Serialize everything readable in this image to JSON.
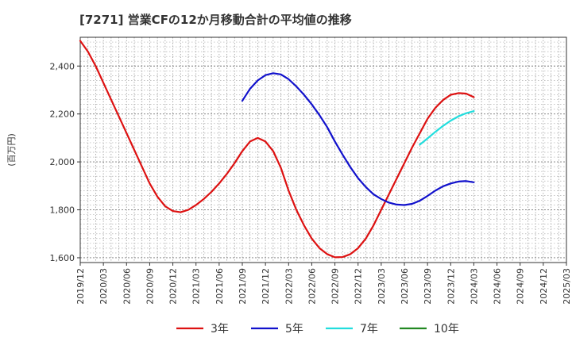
{
  "chart_data": {
    "type": "line",
    "title": "[7271]  営業CFの12か月移動合計の平均値の推移",
    "ylabel": "(百万円)",
    "xlabel": "",
    "ylim": [
      1580,
      2520
    ],
    "yticks": [
      1600,
      1800,
      2000,
      2200,
      2400
    ],
    "ytick_labels": [
      "1,600",
      "1,800",
      "2,000",
      "2,200",
      "2,400"
    ],
    "xticks": [
      "2019/12",
      "2020/03",
      "2020/06",
      "2020/09",
      "2020/12",
      "2021/03",
      "2021/06",
      "2021/09",
      "2021/12",
      "2022/03",
      "2022/06",
      "2022/09",
      "2022/12",
      "2023/03",
      "2023/06",
      "2023/09",
      "2023/12",
      "2024/03",
      "2024/06",
      "2024/09",
      "2024/12",
      "2025/03"
    ],
    "grid": true,
    "legend_position": "bottom",
    "series": [
      {
        "name": "3年",
        "color": "#dd1111",
        "x": [
          "2019/12",
          "2020/01",
          "2020/02",
          "2020/03",
          "2020/04",
          "2020/05",
          "2020/06",
          "2020/07",
          "2020/08",
          "2020/09",
          "2020/10",
          "2020/11",
          "2020/12",
          "2021/01",
          "2021/02",
          "2021/03",
          "2021/04",
          "2021/05",
          "2021/06",
          "2021/07",
          "2021/08",
          "2021/09",
          "2021/10",
          "2021/11",
          "2021/12",
          "2022/01",
          "2022/02",
          "2022/03",
          "2022/04",
          "2022/05",
          "2022/06",
          "2022/07",
          "2022/08",
          "2022/09",
          "2022/10",
          "2022/11",
          "2022/12",
          "2023/01",
          "2023/02",
          "2023/03",
          "2023/04",
          "2023/05",
          "2023/06",
          "2023/07",
          "2023/08",
          "2023/09",
          "2023/10",
          "2023/11",
          "2023/12",
          "2024/01",
          "2024/02",
          "2024/03"
        ],
        "values": [
          2505,
          2460,
          2400,
          2330,
          2260,
          2190,
          2120,
          2050,
          1980,
          1910,
          1855,
          1815,
          1795,
          1790,
          1800,
          1820,
          1845,
          1875,
          1910,
          1950,
          1995,
          2045,
          2085,
          2100,
          2085,
          2045,
          1975,
          1880,
          1800,
          1735,
          1680,
          1640,
          1615,
          1602,
          1603,
          1615,
          1640,
          1680,
          1735,
          1800,
          1865,
          1930,
          1995,
          2060,
          2120,
          2180,
          2225,
          2258,
          2280,
          2287,
          2285,
          2270
        ]
      },
      {
        "name": "5年",
        "color": "#1111cc",
        "x": [
          "2021/09",
          "2021/10",
          "2021/11",
          "2021/12",
          "2022/01",
          "2022/02",
          "2022/03",
          "2022/04",
          "2022/05",
          "2022/06",
          "2022/07",
          "2022/08",
          "2022/09",
          "2022/10",
          "2022/11",
          "2022/12",
          "2023/01",
          "2023/02",
          "2023/03",
          "2023/04",
          "2023/05",
          "2023/06",
          "2023/07",
          "2023/08",
          "2023/09",
          "2023/10",
          "2023/11",
          "2023/12",
          "2024/01",
          "2024/02",
          "2024/03"
        ],
        "values": [
          2255,
          2305,
          2340,
          2362,
          2370,
          2365,
          2345,
          2315,
          2280,
          2240,
          2195,
          2145,
          2085,
          2030,
          1978,
          1932,
          1895,
          1865,
          1845,
          1830,
          1822,
          1820,
          1825,
          1838,
          1858,
          1880,
          1898,
          1910,
          1918,
          1920,
          1915
        ]
      },
      {
        "name": "7年",
        "color": "#22dddd",
        "x": [
          "2023/08",
          "2023/09",
          "2023/10",
          "2023/11",
          "2023/12",
          "2024/01",
          "2024/02",
          "2024/03"
        ],
        "values": [
          2072,
          2098,
          2125,
          2150,
          2172,
          2190,
          2203,
          2212
        ]
      },
      {
        "name": "10年",
        "color": "#228822",
        "x": [],
        "values": []
      }
    ]
  }
}
